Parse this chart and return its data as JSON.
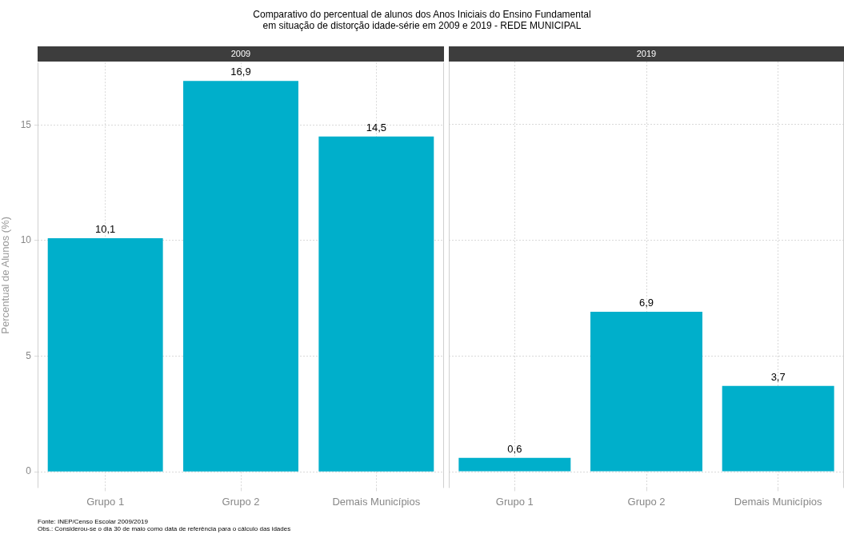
{
  "chart_data": [
    {
      "type": "bar",
      "title": "Comparativo do percentual de alunos dos Anos Iniciais do Ensino Fundamental\nem situação de distorção idade-série em 2009 e 2019 - REDE MUNICIPAL",
      "subtitle": "2009",
      "ylabel": "Percentual de Alunos (%)",
      "categories": [
        "Grupo 1",
        "Grupo 2",
        "Demais Municípios"
      ],
      "values": [
        10.1,
        16.9,
        14.5
      ],
      "value_labels": [
        "10,1",
        "16,9",
        "14,5"
      ],
      "color": "#00afcb",
      "ylim": [
        -0.7,
        17.7
      ],
      "yticks": [
        0,
        5,
        10,
        15
      ],
      "grid": true,
      "annotations": [
        "Fonte: INEP/Censo Escolar 2009/2019",
        "Obs.: Considerou-se o dia 30 de maio como data de referência para o cálculo das idades"
      ]
    },
    {
      "type": "bar",
      "subtitle": "2019",
      "categories": [
        "Grupo 1",
        "Grupo 2",
        "Demais Municípios"
      ],
      "values": [
        0.6,
        6.9,
        3.7
      ],
      "value_labels": [
        "0,6",
        "6,9",
        "3,7"
      ],
      "color": "#00afcb",
      "ylim": [
        -0.7,
        17.7
      ],
      "yticks": [
        0,
        5,
        10,
        15
      ],
      "grid": true,
      "tick_labels": "x"
    }
  ]
}
